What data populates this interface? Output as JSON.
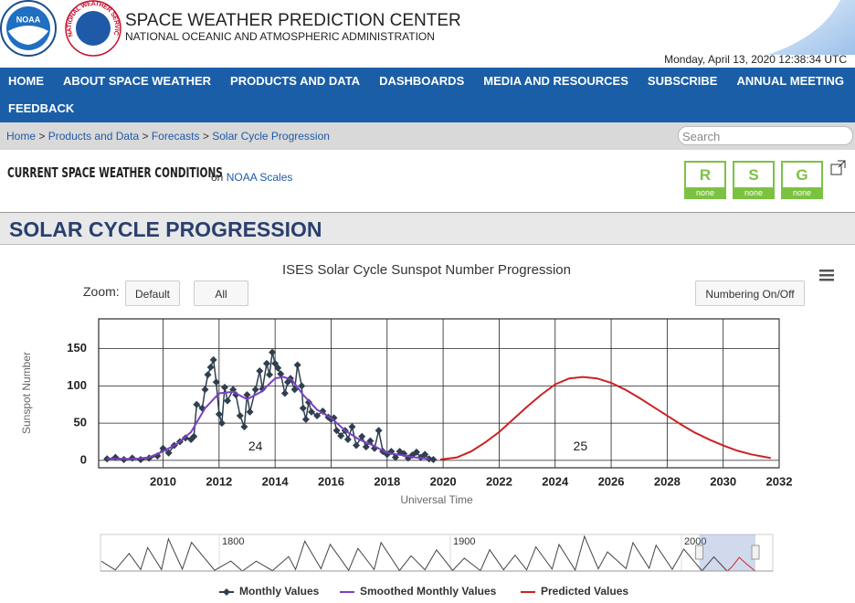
{
  "header": {
    "noaa_logo_text": "NOAA",
    "nws_logo_text": "NATIONAL WEATHER SERVICE",
    "title": "SPACE WEATHER PREDICTION CENTER",
    "subtitle": "NATIONAL OCEANIC AND ATMOSPHERIC ADMINISTRATION",
    "datetime": "Monday, April 13, 2020 12:38:34 UTC"
  },
  "nav": [
    "HOME",
    "ABOUT SPACE WEATHER",
    "PRODUCTS AND DATA",
    "DASHBOARDS",
    "MEDIA AND RESOURCES",
    "SUBSCRIBE",
    "ANNUAL MEETING",
    "FEEDBACK"
  ],
  "breadcrumb": {
    "items": [
      "Home",
      "Products and Data",
      "Forecasts",
      "Solar Cycle Progression"
    ],
    "separator": ">"
  },
  "search_placeholder": "Search",
  "conditions": {
    "title": "CURRENT SPACE WEATHER CONDITIONS",
    "on": "on",
    "link": "NOAA Scales",
    "scales": [
      {
        "letter": "R",
        "status": "none"
      },
      {
        "letter": "S",
        "status": "none"
      },
      {
        "letter": "G",
        "status": "none"
      }
    ]
  },
  "page_title": "SOLAR CYCLE PROGRESSION",
  "controls": {
    "zoom_label": "Zoom:",
    "buttons": [
      "Default",
      "All"
    ],
    "numbering": "Numbering On/Off"
  },
  "chart_data": {
    "type": "line",
    "title": "ISES Solar Cycle Sunspot Number Progression",
    "x_label": "Universal Time",
    "y_label": "Sunspot Number",
    "xlim": [
      2007.7,
      2032
    ],
    "xticks": [
      2010,
      2012,
      2014,
      2016,
      2018,
      2020,
      2022,
      2024,
      2026,
      2028,
      2030,
      2032
    ],
    "ylim": [
      -10,
      190
    ],
    "yticks": [
      0,
      50,
      100,
      150
    ],
    "grid": true,
    "series": [
      {
        "name": "Monthly Values",
        "color": "#2f3f4f",
        "marker": "diamond",
        "x": [
          2008.0,
          2008.3,
          2008.6,
          2008.9,
          2009.2,
          2009.5,
          2009.8,
          2010.0,
          2010.2,
          2010.4,
          2010.6,
          2010.8,
          2011.0,
          2011.1,
          2011.2,
          2011.4,
          2011.5,
          2011.6,
          2011.7,
          2011.8,
          2011.9,
          2012.0,
          2012.1,
          2012.2,
          2012.3,
          2012.5,
          2012.6,
          2012.75,
          2012.9,
          2013.0,
          2013.1,
          2013.3,
          2013.45,
          2013.55,
          2013.7,
          2013.8,
          2013.9,
          2014.0,
          2014.1,
          2014.2,
          2014.35,
          2014.45,
          2014.55,
          2014.7,
          2014.8,
          2014.95,
          2015.0,
          2015.1,
          2015.2,
          2015.3,
          2015.5,
          2015.7,
          2015.9,
          2016.0,
          2016.1,
          2016.2,
          2016.35,
          2016.5,
          2016.6,
          2016.75,
          2016.9,
          2017.1,
          2017.25,
          2017.4,
          2017.55,
          2017.7,
          2017.85,
          2018.0,
          2018.15,
          2018.3,
          2018.45,
          2018.6,
          2018.75,
          2018.9,
          2019.05,
          2019.2,
          2019.35,
          2019.5,
          2019.65
        ],
        "values": [
          2,
          4,
          1,
          3,
          1,
          3,
          6,
          16,
          10,
          20,
          25,
          30,
          28,
          32,
          75,
          70,
          95,
          115,
          125,
          135,
          105,
          62,
          50,
          98,
          80,
          95,
          88,
          60,
          45,
          88,
          65,
          95,
          120,
          96,
          130,
          115,
          145,
          130,
          124,
          116,
          90,
          105,
          110,
          95,
          128,
          100,
          70,
          55,
          78,
          65,
          60,
          66,
          58,
          55,
          57,
          40,
          33,
          40,
          28,
          45,
          20,
          32,
          18,
          26,
          16,
          40,
          12,
          8,
          12,
          4,
          12,
          9,
          3,
          7,
          11,
          4,
          8,
          2,
          1
        ]
      },
      {
        "name": "Smoothed Monthly Values",
        "color": "#7b3fc4",
        "x": [
          2008.0,
          2008.5,
          2009.0,
          2009.5,
          2010.0,
          2010.5,
          2011.0,
          2011.5,
          2012.0,
          2012.5,
          2013.0,
          2013.5,
          2014.0,
          2014.3,
          2014.6,
          2015.0,
          2015.5,
          2016.0,
          2016.5,
          2017.0,
          2017.5,
          2018.0,
          2018.5,
          2019.0,
          2019.5
        ],
        "values": [
          2,
          2,
          2,
          4,
          12,
          22,
          38,
          70,
          90,
          92,
          82,
          92,
          110,
          112,
          108,
          88,
          68,
          57,
          40,
          28,
          20,
          10,
          7,
          4,
          2
        ]
      },
      {
        "name": "Predicted Values",
        "color": "#cc2222",
        "x": [
          2019.9,
          2020.5,
          2021,
          2021.5,
          2022,
          2022.5,
          2023,
          2023.5,
          2024,
          2024.5,
          2025,
          2025.5,
          2026,
          2026.5,
          2027,
          2027.5,
          2028,
          2028.5,
          2029,
          2029.5,
          2030,
          2030.5,
          2031,
          2031.7
        ],
        "values": [
          1,
          4,
          12,
          24,
          38,
          55,
          72,
          88,
          102,
          110,
          112,
          110,
          104,
          95,
          84,
          72,
          60,
          48,
          37,
          28,
          20,
          13,
          8,
          3
        ]
      }
    ],
    "annotations": [
      {
        "text": "24",
        "x": 2013.3,
        "y": 18
      },
      {
        "text": "25",
        "x": 2024.9,
        "y": 18
      }
    ]
  },
  "navigator": {
    "xlim": [
      1748.6,
      2039.5
    ],
    "xticks": [
      1800,
      1900,
      2000
    ],
    "ylim": [
      0,
      300
    ],
    "series": [
      {
        "color": "#444444",
        "x": [
          1749,
          1755,
          1761,
          1766,
          1769,
          1775,
          1778,
          1784,
          1788,
          1798,
          1805,
          1810,
          1816,
          1823,
          1830,
          1833,
          1837,
          1844,
          1848,
          1856,
          1860,
          1867,
          1870,
          1878,
          1883,
          1889,
          1894,
          1901,
          1906,
          1913,
          1917,
          1923,
          1928,
          1933,
          1937,
          1944,
          1947,
          1954,
          1958,
          1964,
          1968,
          1976,
          1979,
          1986,
          1989,
          1996,
          2001,
          2008.9,
          2014,
          2019.6
        ],
        "values": [
          80,
          9,
          144,
          12,
          193,
          12,
          264,
          15,
          235,
          6,
          82,
          0,
          81,
          3,
          119,
          12,
          245,
          18,
          219,
          6,
          186,
          12,
          234,
          4,
          125,
          10,
          173,
          5,
          106,
          3,
          175,
          10,
          130,
          9,
          198,
          16,
          218,
          7,
          285,
          18,
          157,
          20,
          233,
          22,
          212,
          14,
          180,
          2,
          116,
          2
        ]
      },
      {
        "color": "#cc2222",
        "x": [
          2019.9,
          2022,
          2025,
          2028,
          2031.7
        ],
        "values": [
          1,
          38,
          112,
          60,
          3
        ]
      }
    ]
  }
}
